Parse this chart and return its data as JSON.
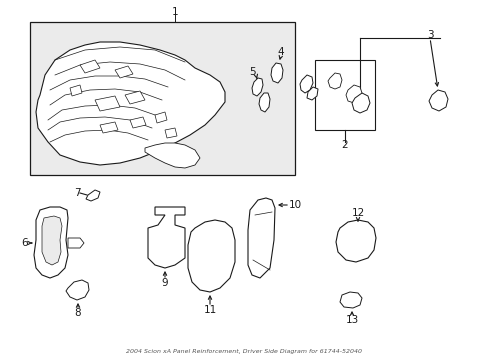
{
  "title": "2004 Scion xA Panel Reinforcement, Driver Side Diagram for 61744-52040",
  "bg_color": "#ffffff",
  "line_color": "#1a1a1a",
  "text_color": "#1a1a1a",
  "part_fill": "#ffffff",
  "box_bg": "#eeeeee",
  "fs": 7.5
}
